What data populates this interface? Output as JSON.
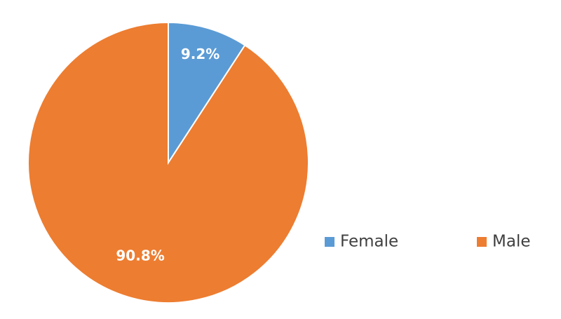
{
  "chart_data": {
    "type": "pie",
    "categories": [
      "Female",
      "Male"
    ],
    "values": [
      9.2,
      90.8
    ],
    "value_labels": [
      "9.2%",
      "90.8%"
    ],
    "colors": [
      "#5b9bd5",
      "#ed7d31"
    ],
    "legend": "right"
  }
}
